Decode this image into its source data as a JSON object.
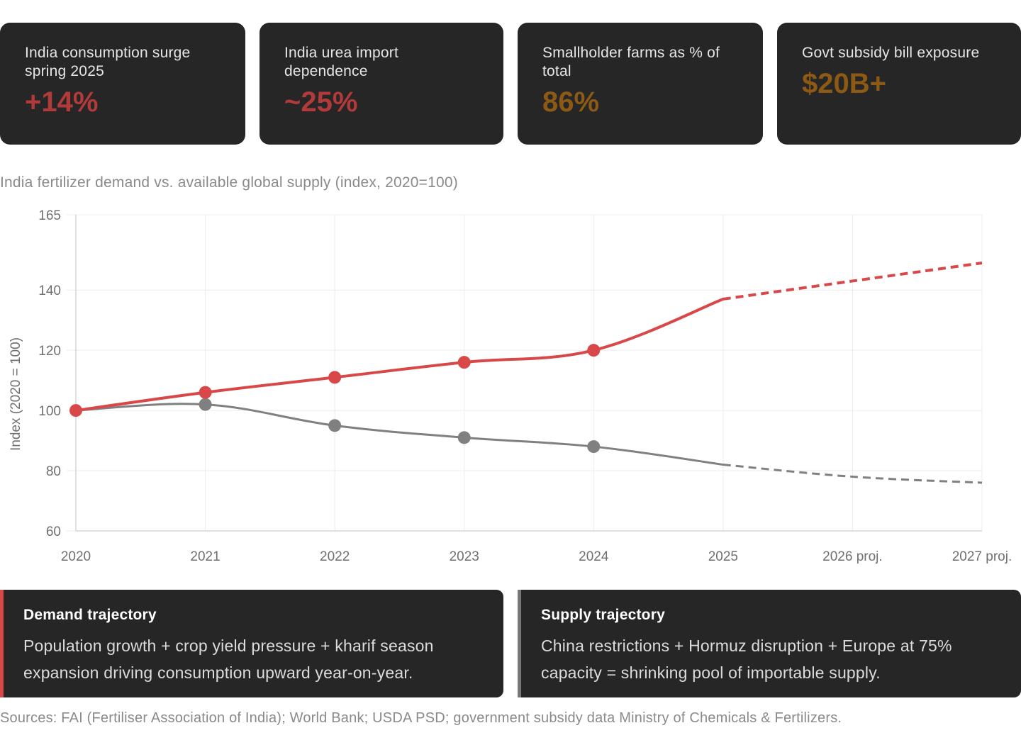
{
  "kpis": [
    {
      "label": "India consumption surge spring 2025",
      "value": "+14%",
      "color": "#b33a3a"
    },
    {
      "label": "India urea import dependence",
      "value": "~25%",
      "color": "#b33a3a"
    },
    {
      "label": "Smallholder farms as % of total",
      "value": "86%",
      "color": "#8c5a14"
    },
    {
      "label": "Govt subsidy bill exposure",
      "value": "$20B+",
      "color": "#8c5a14"
    }
  ],
  "chart_data": {
    "type": "line",
    "title": "India fertilizer demand vs. available global supply (index, 2020=100)",
    "xlabel": "",
    "ylabel": "Index (2020 = 100)",
    "categories": [
      "2020",
      "2021",
      "2022",
      "2023",
      "2024",
      "2025",
      "2026 proj.",
      "2027 proj."
    ],
    "yticks": [
      60,
      80,
      100,
      120,
      140,
      165
    ],
    "ylim": [
      60,
      165
    ],
    "grid": true,
    "series": [
      {
        "name": "Demand",
        "color": "#d94848",
        "values": [
          100,
          106,
          111,
          116,
          120,
          137,
          143,
          149
        ],
        "markers": [
          0,
          1,
          2,
          3,
          4
        ],
        "projected_from": 5
      },
      {
        "name": "Supply",
        "color": "#808080",
        "values": [
          100,
          102,
          95,
          91,
          88,
          82,
          78,
          76
        ],
        "markers": [
          1,
          2,
          3,
          4
        ],
        "projected_from": 5
      }
    ]
  },
  "notes": {
    "demand": {
      "title": "Demand trajectory",
      "body": "Population growth + crop yield pressure + kharif season expansion driving consumption upward year-on-year."
    },
    "supply": {
      "title": "Supply trajectory",
      "body": "China restrictions + Hormuz disruption + Europe at 75% capacity = shrinking pool of importable supply."
    }
  },
  "sources": "Sources: FAI (Fertiliser Association of India); World Bank; USDA PSD; government subsidy data Ministry of Chemicals & Fertilizers."
}
